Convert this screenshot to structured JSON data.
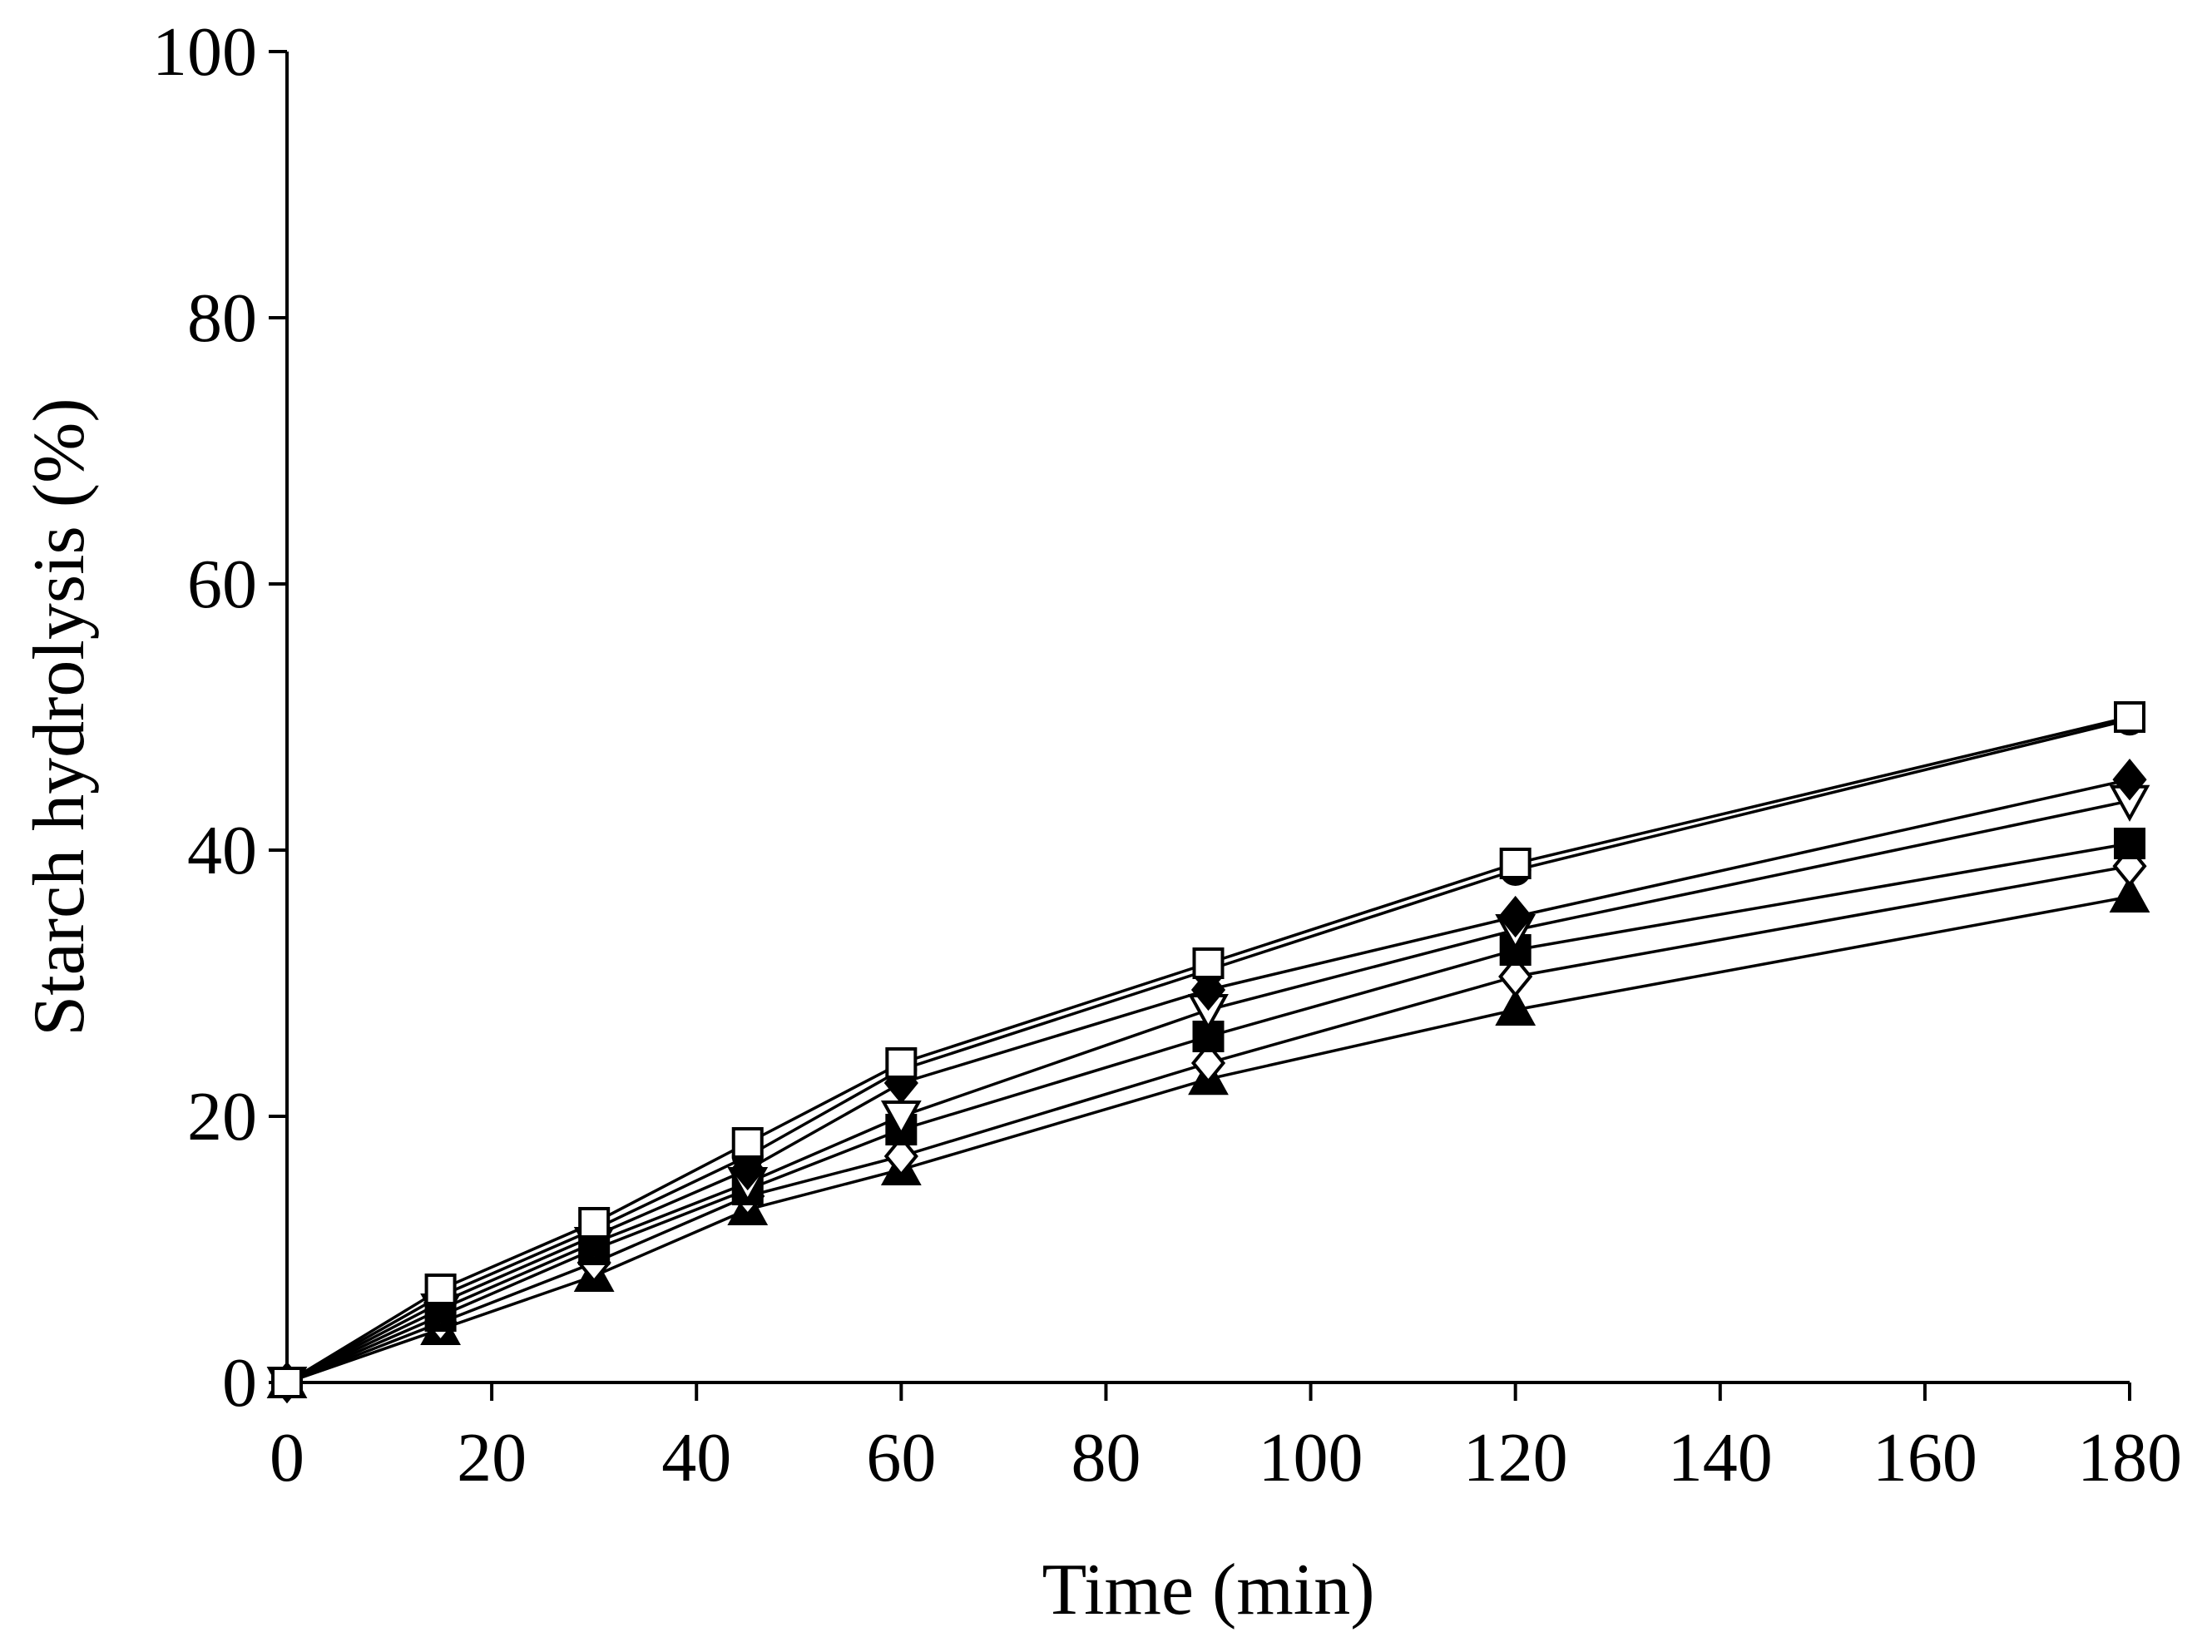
{
  "chart_data": {
    "type": "line",
    "title": "",
    "xlabel": "Time (min)",
    "ylabel": "Starch hydrolysis (%)",
    "xlim": [
      0,
      180
    ],
    "ylim": [
      0,
      100
    ],
    "xticks": [
      0,
      20,
      40,
      60,
      80,
      100,
      120,
      140,
      160,
      180
    ],
    "yticks": [
      0,
      20,
      40,
      60,
      80,
      100
    ],
    "grid": false,
    "legend": "none",
    "x": [
      0,
      15,
      30,
      45,
      60,
      90,
      120,
      180
    ],
    "series": [
      {
        "marker": "open-square",
        "values": [
          0,
          7,
          12,
          18,
          24,
          31.5,
          39,
          50
        ]
      },
      {
        "marker": "filled-circle",
        "values": [
          0,
          6.5,
          11.5,
          17,
          23.5,
          31,
          38.5,
          49.8
        ]
      },
      {
        "marker": "filled-diamond",
        "values": [
          0,
          6,
          11,
          16,
          22.5,
          29.5,
          35,
          45.3
        ]
      },
      {
        "marker": "open-triangle-down",
        "values": [
          0,
          5.5,
          10.5,
          15,
          20,
          28,
          34,
          43.7
        ]
      },
      {
        "marker": "filled-square",
        "values": [
          0,
          5,
          10,
          14.5,
          19,
          26,
          32.5,
          40.5
        ]
      },
      {
        "marker": "open-diamond",
        "values": [
          0,
          4.5,
          9,
          14,
          17,
          24,
          30.5,
          38.8
        ]
      },
      {
        "marker": "filled-triangle",
        "values": [
          0,
          4,
          8,
          13,
          16,
          22.8,
          28,
          36.5
        ]
      }
    ]
  },
  "colors": {
    "ink": "#000000",
    "background": "#ffffff"
  }
}
